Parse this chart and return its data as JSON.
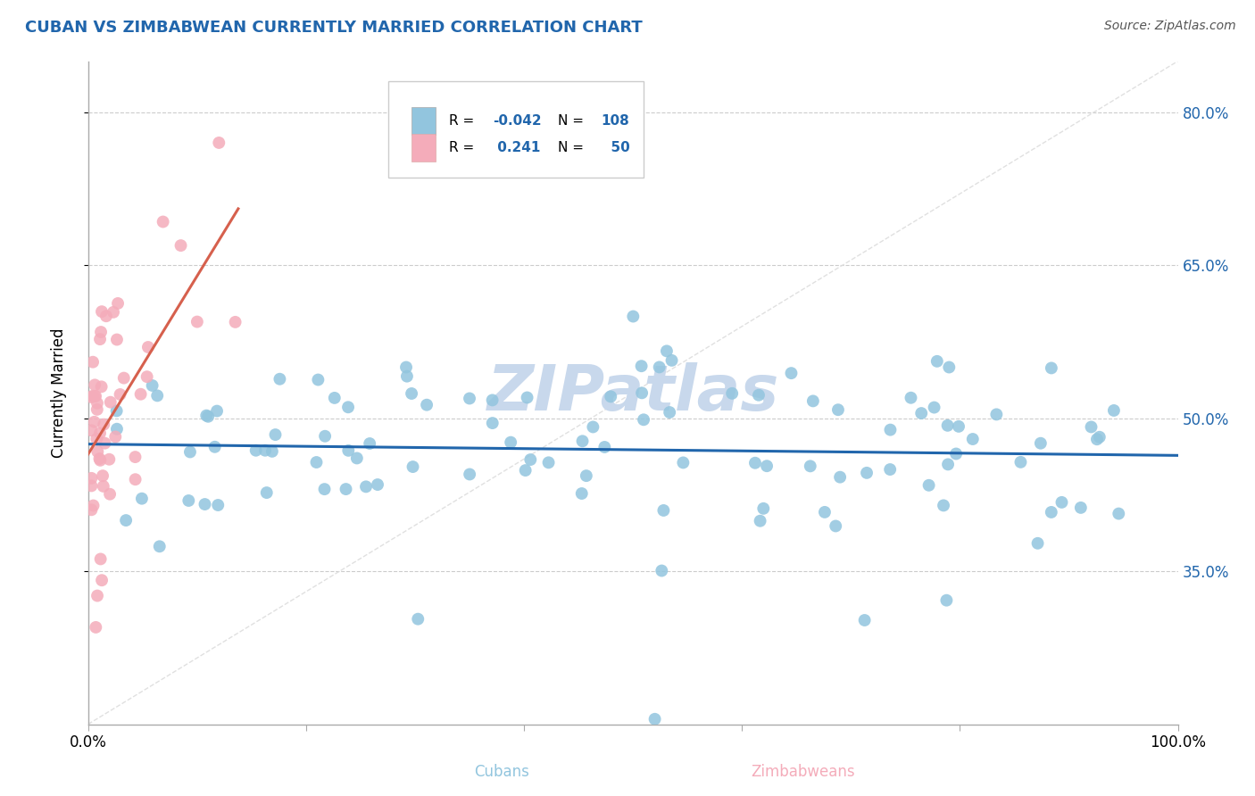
{
  "title": "CUBAN VS ZIMBABWEAN CURRENTLY MARRIED CORRELATION CHART",
  "source_text": "Source: ZipAtlas.com",
  "ylabel": "Currently Married",
  "xlim": [
    0.0,
    1.0
  ],
  "ylim": [
    0.2,
    0.85
  ],
  "ytick_labels": [
    "35.0%",
    "50.0%",
    "65.0%",
    "80.0%"
  ],
  "ytick_values": [
    0.35,
    0.5,
    0.65,
    0.8
  ],
  "xtick_values": [
    0.0,
    0.2,
    0.4,
    0.6,
    0.8,
    1.0
  ],
  "xtick_labels": [
    "0.0%",
    "",
    "",
    "",
    "",
    "100.0%"
  ],
  "r_cuban": -0.042,
  "n_cuban": 108,
  "r_zimbabwean": 0.241,
  "n_zimbabwean": 50,
  "blue_scatter_color": "#92C5DE",
  "pink_scatter_color": "#F4ACBA",
  "blue_line_color": "#2166AC",
  "pink_line_color": "#D6604D",
  "title_color": "#2166AC",
  "legend_r_color": "#2166AC",
  "watermark_color": "#C8D8EC",
  "right_tick_color": "#2166AC",
  "xlabel_cubans_color": "#92C5DE",
  "xlabel_zimbabweans_color": "#F4ACBA",
  "diagonal_color": "#DDDDDD"
}
